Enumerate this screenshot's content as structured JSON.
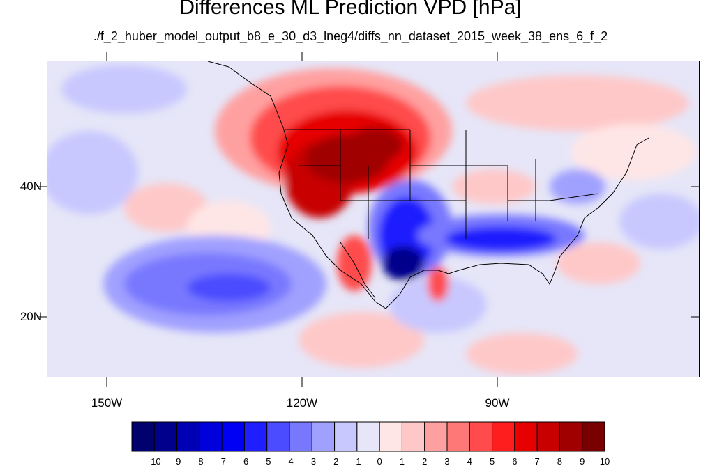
{
  "map": {
    "title": "Differences ML Prediction VPD [hPa]",
    "subtitle": "./f_2_huber_model_output_b8_e_30_d3_lneg4/diffs_nn_dataset_2015_week_38_ens_6_f_2",
    "lat_labels": [
      "40N",
      "20N"
    ],
    "lon_labels": [
      "150W",
      "120W",
      "90W"
    ]
  },
  "colorbar": {
    "labels": [
      "-10",
      "-9",
      "-8",
      "-7",
      "-6",
      "-5",
      "-4",
      "-3",
      "-2",
      "-1",
      "0",
      "1",
      "2",
      "3",
      "4",
      "5",
      "6",
      "7",
      "8",
      "9",
      "10"
    ],
    "colors": [
      "#00006e",
      "#00008c",
      "#0000b4",
      "#0000dc",
      "#0000f5",
      "#1e1eff",
      "#4b4bff",
      "#7878ff",
      "#a0a0ff",
      "#c8c8ff",
      "#e6e6f8",
      "#ffe6e6",
      "#ffc8c8",
      "#ffa0a0",
      "#ff7878",
      "#ff4b4b",
      "#ff1e1e",
      "#e60000",
      "#c80000",
      "#a00000",
      "#780000"
    ]
  }
}
